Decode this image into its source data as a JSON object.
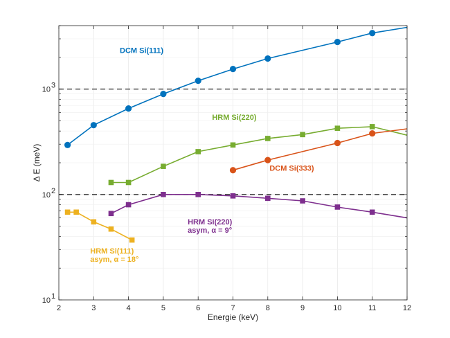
{
  "chart_data": {
    "type": "line",
    "xlabel": "Energie (keV)",
    "ylabel": "Δ E (meV)",
    "xlim": [
      2,
      12
    ],
    "ylim": [
      10,
      4000
    ],
    "yscale": "log",
    "grid": true,
    "x_ticks": [
      "2",
      "3",
      "4",
      "5",
      "6",
      "7",
      "8",
      "9",
      "10",
      "11",
      "12"
    ],
    "y_ticks": [
      {
        "value": 10,
        "base": "10",
        "exp": "1"
      },
      {
        "value": 100,
        "base": "10",
        "exp": "2"
      },
      {
        "value": 1000,
        "base": "10",
        "exp": "3"
      }
    ],
    "reference_lines": [
      100,
      1000
    ],
    "series": [
      {
        "id": "dcm111",
        "color": "#0072BD",
        "marker": "circle",
        "points": [
          [
            2.25,
            295
          ],
          [
            3,
            455
          ],
          [
            4,
            655
          ],
          [
            5,
            900
          ],
          [
            6,
            1200
          ],
          [
            7,
            1550
          ],
          [
            8,
            1950
          ],
          [
            10,
            2800
          ],
          [
            11,
            3400
          ]
        ],
        "line_to": [
          12,
          3850
        ]
      },
      {
        "id": "hrm220",
        "color": "#77AC30",
        "marker": "square",
        "points": [
          [
            3.5,
            130
          ],
          [
            4,
            130
          ],
          [
            5,
            185
          ],
          [
            6,
            255
          ],
          [
            7,
            295
          ],
          [
            8,
            340
          ],
          [
            9,
            370
          ],
          [
            10,
            425
          ],
          [
            11,
            440
          ]
        ],
        "line_to": [
          12,
          365
        ]
      },
      {
        "id": "dcm333",
        "color": "#D95319",
        "marker": "circle",
        "points": [
          [
            7,
            170
          ],
          [
            8,
            212
          ],
          [
            10,
            308
          ],
          [
            11,
            380
          ]
        ],
        "line_to": [
          12,
          420
        ]
      },
      {
        "id": "hrm220asym",
        "color": "#7E2F8E",
        "marker": "square",
        "points": [
          [
            3.5,
            66
          ],
          [
            4,
            80
          ],
          [
            5,
            100
          ],
          [
            6,
            100
          ],
          [
            7,
            97
          ],
          [
            8,
            92
          ],
          [
            9,
            87
          ],
          [
            10,
            76
          ],
          [
            11,
            68
          ]
        ],
        "line_to": [
          12,
          60
        ]
      },
      {
        "id": "hrm111asym",
        "color": "#EDB120",
        "marker": "square",
        "points": [
          [
            2.25,
            68
          ],
          [
            2.5,
            68
          ],
          [
            3,
            55
          ],
          [
            3.5,
            47
          ],
          [
            4.1,
            37
          ]
        ]
      }
    ],
    "annotations": [
      {
        "id": "dcm111",
        "lines": [
          "DCM Si(111)"
        ],
        "color": "#0072BD",
        "x": 3.75,
        "y": 2200,
        "anchor": "start"
      },
      {
        "id": "hrm220",
        "lines": [
          "HRM Si(220)"
        ],
        "color": "#77AC30",
        "x": 6.4,
        "y": 510,
        "anchor": "start"
      },
      {
        "id": "dcm333",
        "lines": [
          "DCM Si(333)"
        ],
        "color": "#D95319",
        "x": 8.05,
        "y": 168,
        "anchor": "start"
      },
      {
        "id": "hrm220asym",
        "lines": [
          "HRM Si(220)",
          "asym, α = 9°"
        ],
        "color": "#7E2F8E",
        "x": 5.7,
        "y": 52,
        "anchor": "start"
      },
      {
        "id": "hrm111asym",
        "lines": [
          "HRM Si(111)",
          "asym, α = 18°"
        ],
        "color": "#EDB120",
        "x": 2.9,
        "y": 27.5,
        "anchor": "start"
      }
    ]
  }
}
